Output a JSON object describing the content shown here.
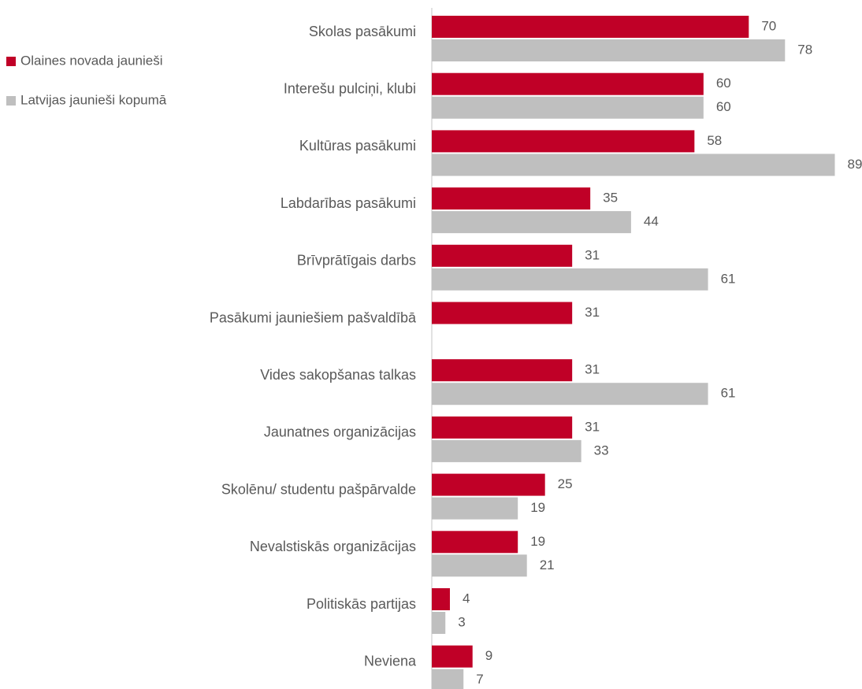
{
  "chart_data": {
    "type": "hbar",
    "categories": [
      "Skolas pasākumi",
      "Interešu pulciņi, klubi",
      "Kultūras pasākumi",
      "Labdarības pasākumi",
      "Brīvprātīgais darbs",
      "Pasākumi jauniešiem pašvaldībā",
      "Vides sakopšanas talkas",
      "Jaunatnes organizācijas",
      "Skolēnu/ studentu pašpārvalde",
      "Nevalstiskās organizācijas",
      "Politiskās partijas",
      "Neviena"
    ],
    "series": [
      {
        "name": "Olaines novada jaunieši",
        "color": "#c00027",
        "values": [
          70,
          60,
          58,
          35,
          31,
          31,
          31,
          31,
          25,
          19,
          4,
          9
        ]
      },
      {
        "name": "Latvijas jaunieši kopumā",
        "color": "#bfbfbf",
        "values": [
          78,
          60,
          89,
          44,
          61,
          null,
          61,
          33,
          19,
          21,
          3,
          7
        ]
      }
    ],
    "xlim": [
      0,
      95
    ],
    "legend": "top-left"
  }
}
